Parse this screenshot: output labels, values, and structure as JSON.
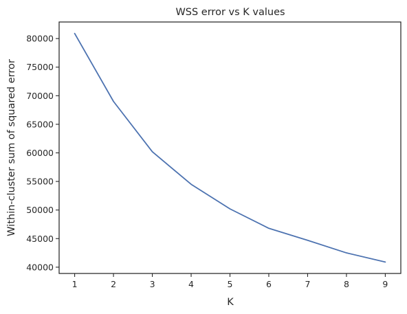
{
  "chart_data": {
    "type": "line",
    "title": "WSS error vs K values",
    "xlabel": "K",
    "ylabel": "Within-cluster sum of squared error",
    "x": [
      1,
      2,
      3,
      4,
      5,
      6,
      7,
      8,
      9
    ],
    "series": [
      {
        "values": [
          80900,
          69000,
          60200,
          54500,
          50200,
          46800,
          44700,
          42500,
          40900
        ],
        "color": "#4c72b0"
      }
    ],
    "xlim": [
      0.6,
      9.4
    ],
    "ylim": [
      38900,
      82900
    ],
    "xticks": [
      1,
      2,
      3,
      4,
      5,
      6,
      7,
      8,
      9
    ],
    "yticks": [
      40000,
      45000,
      50000,
      55000,
      60000,
      65000,
      70000,
      75000,
      80000
    ],
    "grid": false,
    "legend": false
  }
}
